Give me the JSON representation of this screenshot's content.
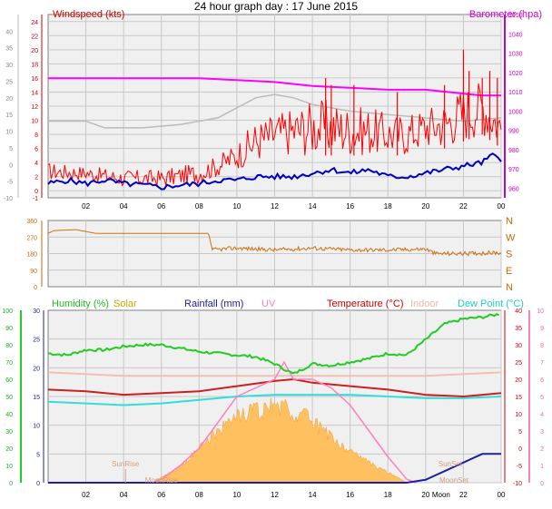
{
  "title": "24 hour graph day : 17 June 2015",
  "x_ticks": [
    "02",
    "04",
    "06",
    "08",
    "10",
    "12",
    "14",
    "16",
    "18",
    "20",
    "22",
    "00"
  ],
  "colors": {
    "bg_panel": "#f0f0f0",
    "grid": "#c8c8c8",
    "wind": "#ff0000",
    "gust": "#ff0000",
    "avg_wind": "#0000c0",
    "barometer": "#ff00ff",
    "temp_scale": "#bbbbbb",
    "direction": "#d07010",
    "humidity": "#22cc22",
    "solar": "#ffc060",
    "rainfall": "#2020a0",
    "uv": "#ff80c0",
    "temperature": "#cc2020",
    "indoor": "#f0c0b0",
    "dew_point": "#33dddd"
  },
  "chart_data": [
    {
      "type": "line",
      "name": "wind",
      "labels": {
        "left": "Windspeed (kts)",
        "right": "Barometer (hpa)"
      },
      "y_left_ticks": [
        "-1",
        "0",
        "2",
        "4",
        "6",
        "8",
        "10",
        "12",
        "14",
        "16",
        "18",
        "20",
        "22",
        "24"
      ],
      "y_leftmost_ticks": [
        "-10",
        "-5",
        "0",
        "5",
        "10",
        "15",
        "20",
        "25",
        "30",
        "35",
        "40"
      ],
      "y_right_ticks": [
        "960",
        "970",
        "980",
        "990",
        "1000",
        "1010",
        "1020",
        "1030",
        "1040",
        "1050"
      ],
      "ylim_left": [
        -1,
        25
      ],
      "ylim_right": [
        955,
        1050
      ],
      "ylim_leftmost": [
        -10,
        45
      ],
      "x_hours": [
        0,
        24
      ],
      "series": [
        {
          "key": "barometer",
          "points": [
            [
              0,
              1017
            ],
            [
              4,
              1017
            ],
            [
              8,
              1017
            ],
            [
              10,
              1016
            ],
            [
              12,
              1015
            ],
            [
              14,
              1013
            ],
            [
              16,
              1012
            ],
            [
              18,
              1011
            ],
            [
              20,
              1011
            ],
            [
              22,
              1009
            ],
            [
              23,
              1008
            ],
            [
              24,
              1008
            ]
          ]
        },
        {
          "key": "temp_scale",
          "points": [
            [
              0,
              13
            ],
            [
              2,
              13
            ],
            [
              3,
              11
            ],
            [
              5,
              11
            ],
            [
              7,
              12
            ],
            [
              9,
              14
            ],
            [
              11,
              20
            ],
            [
              12,
              21
            ],
            [
              13,
              20
            ],
            [
              14,
              18
            ],
            [
              16,
              16
            ],
            [
              18,
              15
            ],
            [
              20,
              14
            ],
            [
              22,
              13
            ],
            [
              24,
              14
            ]
          ]
        },
        {
          "key": "avg_wind",
          "points": [
            [
              0,
              1.0
            ],
            [
              1,
              1.5
            ],
            [
              2,
              1.0
            ],
            [
              3,
              1.5
            ],
            [
              4,
              1.0
            ],
            [
              5,
              0.8
            ],
            [
              6,
              0.5
            ],
            [
              7,
              0.8
            ],
            [
              8,
              1.0
            ],
            [
              9,
              1.5
            ],
            [
              10,
              1.5
            ],
            [
              11,
              2.0
            ],
            [
              12,
              2.0
            ],
            [
              13,
              2.0
            ],
            [
              14,
              2.5
            ],
            [
              15,
              3.0
            ],
            [
              16,
              2.5
            ],
            [
              17,
              3.0
            ],
            [
              18,
              2.0
            ],
            [
              19,
              2.0
            ],
            [
              20,
              2.5
            ],
            [
              21,
              3.0
            ],
            [
              22,
              3.5
            ],
            [
              23,
              4.0
            ],
            [
              23.5,
              5.0
            ],
            [
              24,
              4.5
            ]
          ]
        },
        {
          "key": "wind_band",
          "points": [
            [
              0,
              1.5,
              4
            ],
            [
              2,
              1.5,
              3.5
            ],
            [
              4,
              0.5,
              3
            ],
            [
              6,
              0.5,
              3
            ],
            [
              8,
              1,
              4
            ],
            [
              9,
              2,
              5
            ],
            [
              10,
              3,
              7
            ],
            [
              11,
              4,
              10
            ],
            [
              12,
              5,
              11
            ],
            [
              13,
              5,
              12
            ],
            [
              14,
              5,
              13
            ],
            [
              15,
              5,
              13
            ],
            [
              16,
              5,
              12
            ],
            [
              17,
              5,
              12
            ],
            [
              18,
              5,
              11
            ],
            [
              19,
              5,
              11
            ],
            [
              20,
              6,
              12
            ],
            [
              21,
              6,
              13
            ],
            [
              22,
              7,
              15
            ],
            [
              23,
              8,
              16
            ],
            [
              24,
              6,
              12
            ]
          ]
        },
        {
          "key": "gust_spikes",
          "points": [
            [
              14.7,
              16
            ],
            [
              15.0,
              15
            ],
            [
              16.2,
              15
            ],
            [
              18.5,
              14
            ],
            [
              21.0,
              15
            ],
            [
              22.0,
              20
            ],
            [
              22.3,
              17
            ],
            [
              23.0,
              16
            ],
            [
              23.4,
              17
            ],
            [
              23.8,
              16
            ]
          ]
        }
      ]
    },
    {
      "type": "line",
      "name": "direction",
      "y_left_ticks": [
        "0",
        "90",
        "180",
        "270",
        "360"
      ],
      "y_right_ticks": [
        "N",
        "W",
        "S",
        "E",
        "N"
      ],
      "ylim": [
        0,
        360
      ],
      "series": [
        {
          "key": "direction",
          "points": [
            [
              0,
              290
            ],
            [
              0.3,
              305
            ],
            [
              1.5,
              310
            ],
            [
              2.5,
              290
            ],
            [
              8.5,
              290
            ],
            [
              8.7,
              200
            ],
            [
              10,
              210
            ],
            [
              12,
              200
            ],
            [
              14,
              210
            ],
            [
              16,
              200
            ],
            [
              18,
              200
            ],
            [
              20,
              205
            ],
            [
              20.5,
              180
            ],
            [
              22,
              180
            ],
            [
              24,
              185
            ]
          ]
        }
      ]
    },
    {
      "type": "area",
      "name": "weather",
      "labels": [
        "Humidity (%)",
        "Solar",
        "Rainfall (mm)",
        "UV",
        "Temperature (°C)",
        "Indoor",
        "Dew Point (°C)"
      ],
      "annotations": [
        "SunRise",
        "SunSet",
        "MoonRise",
        "MoonSet",
        "Moon"
      ],
      "y_hum_ticks": [
        "0",
        "10",
        "20",
        "30",
        "40",
        "50",
        "60",
        "70",
        "80",
        "90",
        "100"
      ],
      "y_rain_ticks": [
        "0",
        "5",
        "10",
        "15",
        "20",
        "25",
        "30"
      ],
      "y_temp_ticks": [
        "-10",
        "-5",
        "0",
        "5",
        "10",
        "15",
        "20",
        "25",
        "30",
        "35",
        "40"
      ],
      "y_uv_ticks": [
        "0",
        "1",
        "2",
        "3",
        "4",
        "5",
        "6",
        "7",
        "8",
        "9",
        "10"
      ],
      "series": [
        {
          "key": "humidity",
          "points": [
            [
              0,
              75
            ],
            [
              1,
              74
            ],
            [
              2,
              77
            ],
            [
              3,
              77
            ],
            [
              4,
              79
            ],
            [
              5,
              80
            ],
            [
              6,
              80
            ],
            [
              7,
              78
            ],
            [
              8,
              76
            ],
            [
              9,
              75
            ],
            [
              10,
              74
            ],
            [
              11,
              73
            ],
            [
              12,
              69
            ],
            [
              13,
              63
            ],
            [
              14,
              69
            ],
            [
              15,
              68
            ],
            [
              16,
              70
            ],
            [
              17,
              72
            ],
            [
              18,
              75
            ],
            [
              19,
              74
            ],
            [
              20,
              83
            ],
            [
              21,
              92
            ],
            [
              22,
              95
            ],
            [
              23,
              96
            ],
            [
              24,
              98
            ]
          ]
        },
        {
          "key": "indoor",
          "points": [
            [
              0,
              22
            ],
            [
              4,
              21
            ],
            [
              8,
              21
            ],
            [
              12,
              21
            ],
            [
              16,
              21
            ],
            [
              20,
              21
            ],
            [
              24,
              22
            ]
          ]
        },
        {
          "key": "temperature",
          "points": [
            [
              0,
              17
            ],
            [
              2,
              16.5
            ],
            [
              4,
              15.5
            ],
            [
              6,
              16
            ],
            [
              8,
              16.5
            ],
            [
              10,
              18
            ],
            [
              12,
              19.5
            ],
            [
              13,
              20
            ],
            [
              14,
              19
            ],
            [
              16,
              18
            ],
            [
              18,
              17
            ],
            [
              20,
              15.5
            ],
            [
              22,
              15
            ],
            [
              24,
              16
            ]
          ]
        },
        {
          "key": "dew_point",
          "points": [
            [
              0,
              13.5
            ],
            [
              2,
              13
            ],
            [
              4,
              12.5
            ],
            [
              6,
              13
            ],
            [
              8,
              14
            ],
            [
              10,
              15
            ],
            [
              12,
              15.5
            ],
            [
              14,
              15.5
            ],
            [
              16,
              15.5
            ],
            [
              18,
              15
            ],
            [
              20,
              14.5
            ],
            [
              22,
              14.5
            ],
            [
              24,
              15
            ]
          ]
        },
        {
          "key": "solar",
          "points": [
            [
              5.5,
              0
            ],
            [
              6,
              1
            ],
            [
              7,
              3
            ],
            [
              8,
              7
            ],
            [
              9,
              10
            ],
            [
              10,
              13
            ],
            [
              11,
              14
            ],
            [
              12,
              15
            ],
            [
              12.5,
              15
            ],
            [
              13,
              12
            ],
            [
              13.5,
              14
            ],
            [
              14,
              12
            ],
            [
              15,
              9
            ],
            [
              16,
              6
            ],
            [
              17,
              4
            ],
            [
              18,
              2
            ],
            [
              18.5,
              1
            ],
            [
              19,
              0
            ]
          ]
        },
        {
          "key": "uv",
          "points": [
            [
              5.5,
              0
            ],
            [
              6,
              0.2
            ],
            [
              7,
              1
            ],
            [
              8,
              2
            ],
            [
              9,
              3.5
            ],
            [
              10,
              5
            ],
            [
              11,
              5.5
            ],
            [
              12,
              6
            ],
            [
              12.5,
              7
            ],
            [
              13,
              6
            ],
            [
              14,
              6
            ],
            [
              15,
              5.5
            ],
            [
              16,
              4.5
            ],
            [
              17,
              3
            ],
            [
              18,
              1.5
            ],
            [
              19,
              0.2
            ],
            [
              19.5,
              0
            ]
          ]
        },
        {
          "key": "rainfall",
          "points": [
            [
              0,
              0
            ],
            [
              18,
              0
            ],
            [
              19,
              0
            ],
            [
              20,
              0.5
            ],
            [
              21,
              2
            ],
            [
              22,
              3.5
            ],
            [
              23,
              5
            ],
            [
              23.8,
              5
            ],
            [
              24,
              5
            ]
          ]
        }
      ]
    }
  ]
}
